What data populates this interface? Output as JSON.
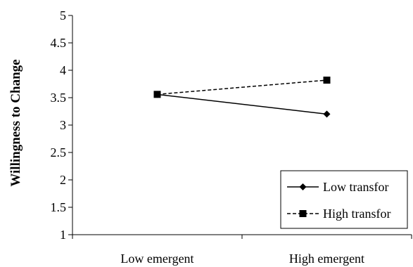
{
  "chart_data": {
    "type": "line",
    "categories": [
      "Low emergent",
      "High emergent"
    ],
    "ylabel": "Willingness to Change",
    "xlabel": "",
    "ylim": [
      1,
      5
    ],
    "yticks": [
      "1",
      "1.5",
      "2",
      "2.5",
      "3",
      "3.5",
      "4",
      "4.5",
      "5"
    ],
    "grid": false,
    "legend_position": "bottom-right",
    "series": [
      {
        "name": "Low transfor",
        "values": [
          3.56,
          3.2
        ],
        "line": "solid",
        "marker": "diamond",
        "color": "#000000"
      },
      {
        "name": "High transfor",
        "values": [
          3.56,
          3.82
        ],
        "line": "dashed",
        "marker": "square",
        "color": "#000000"
      }
    ]
  }
}
